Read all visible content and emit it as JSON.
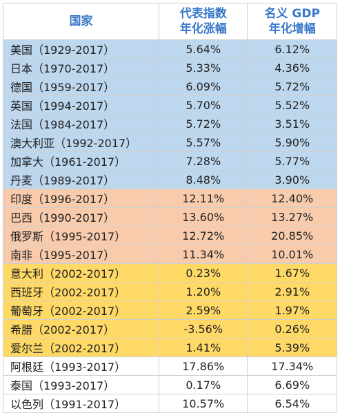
{
  "header": {
    "country": "国家",
    "index_line1": "代表指数",
    "index_line2": "年化涨幅",
    "gdp_line1": "名义 GDP",
    "gdp_line2": "年化增幅"
  },
  "rows": [
    {
      "group": "blue",
      "country": "美国（1929-2017）",
      "index": "5.64%",
      "gdp": "6.12%"
    },
    {
      "group": "blue",
      "country": "日本（1970-2017）",
      "index": "5.33%",
      "gdp": "4.36%"
    },
    {
      "group": "blue",
      "country": "德国（1959-2017）",
      "index": "6.09%",
      "gdp": "5.72%"
    },
    {
      "group": "blue",
      "country": "英国（1994-2017）",
      "index": "5.70%",
      "gdp": "5.52%"
    },
    {
      "group": "blue",
      "country": "法国（1984-2017）",
      "index": "5.72%",
      "gdp": "3.51%"
    },
    {
      "group": "blue",
      "country": "澳大利亚（1992-2017）",
      "index": "5.57%",
      "gdp": "5.90%"
    },
    {
      "group": "blue",
      "country": "加拿大（1961-2017）",
      "index": "7.28%",
      "gdp": "5.77%"
    },
    {
      "group": "blue",
      "country": "丹麦（1989-2017）",
      "index": "8.48%",
      "gdp": "3.90%"
    },
    {
      "group": "orange",
      "country": "印度（1996-2017）",
      "index": "12.11%",
      "gdp": "12.40%"
    },
    {
      "group": "orange",
      "country": "巴西（1990-2017）",
      "index": "13.60%",
      "gdp": "13.27%"
    },
    {
      "group": "orange",
      "country": "俄罗斯（1995-2017）",
      "index": "12.72%",
      "gdp": "20.85%"
    },
    {
      "group": "orange",
      "country": "南非（1995-2017）",
      "index": "11.34%",
      "gdp": "10.01%"
    },
    {
      "group": "yellow",
      "country": "意大利（2002-2017）",
      "index": "0.23%",
      "gdp": "1.67%"
    },
    {
      "group": "yellow",
      "country": "西班牙（2002-2017）",
      "index": "1.20%",
      "gdp": "2.91%"
    },
    {
      "group": "yellow",
      "country": "葡萄牙（2002-2017）",
      "index": "2.59%",
      "gdp": "1.97%"
    },
    {
      "group": "yellow",
      "country": "希腊（2002-2017）",
      "index": "-3.56%",
      "gdp": "0.26%"
    },
    {
      "group": "yellow",
      "country": "爱尔兰（2002-2017）",
      "index": "1.41%",
      "gdp": "5.39%"
    },
    {
      "group": "white",
      "country": "阿根廷（1993-2017）",
      "index": "17.86%",
      "gdp": "17.34%"
    },
    {
      "group": "white",
      "country": "泰国（1993-2017）",
      "index": "0.17%",
      "gdp": "6.69%"
    },
    {
      "group": "white",
      "country": "以色列（1991-2017）",
      "index": "10.57%",
      "gdp": "6.54%"
    }
  ],
  "colors": {
    "header_text": "#3a78c9",
    "blue": "#bdd7ee",
    "orange": "#f8cbad",
    "yellow": "#ffd966",
    "white": "#ffffff"
  }
}
